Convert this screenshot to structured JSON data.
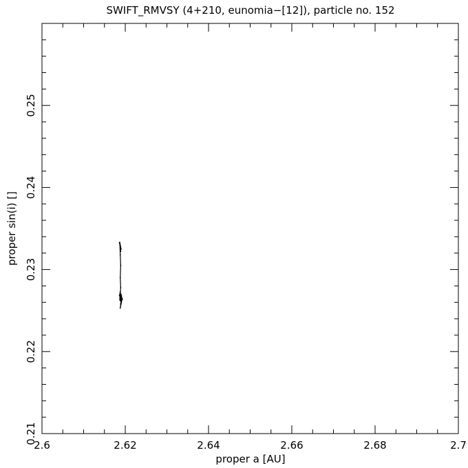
{
  "chart_data": {
    "type": "line",
    "title": "SWIFT_RMVSY (4+210, eunomia−[12]), particle no. 152",
    "xlabel": "proper a [AU]",
    "ylabel": "proper sin(i) []",
    "xlim": [
      2.6,
      2.7
    ],
    "ylim": [
      0.21,
      0.26
    ],
    "x_ticks": [
      "2.6",
      "2.62",
      "2.64",
      "2.66",
      "2.68",
      "2.7"
    ],
    "y_ticks": [
      "0.21",
      "0.22",
      "0.23",
      "0.24",
      "0.25"
    ],
    "grid": false,
    "series": [
      {
        "color": "#000000",
        "points": [
          [
            2.6186,
            0.2333
          ],
          [
            2.6188,
            0.2328
          ],
          [
            2.6187,
            0.2333
          ],
          [
            2.6189,
            0.2322
          ],
          [
            2.6188,
            0.233
          ],
          [
            2.619,
            0.2325
          ],
          [
            2.6187,
            0.2331
          ],
          [
            2.6188,
            0.2318
          ],
          [
            2.6189,
            0.2305
          ],
          [
            2.6188,
            0.229
          ],
          [
            2.6189,
            0.2278
          ],
          [
            2.6188,
            0.227
          ],
          [
            2.6186,
            0.2268
          ],
          [
            2.6188,
            0.2273
          ],
          [
            2.6187,
            0.2265
          ],
          [
            2.619,
            0.227
          ],
          [
            2.6188,
            0.2262
          ],
          [
            2.6191,
            0.2268
          ],
          [
            2.6189,
            0.2258
          ],
          [
            2.6192,
            0.2263
          ],
          [
            2.6188,
            0.2253
          ],
          [
            2.619,
            0.2262
          ],
          [
            2.6189,
            0.2266
          ],
          [
            2.6193,
            0.2264
          ],
          [
            2.6189,
            0.227
          ],
          [
            2.6187,
            0.2263
          ],
          [
            2.619,
            0.2268
          ]
        ]
      }
    ]
  }
}
